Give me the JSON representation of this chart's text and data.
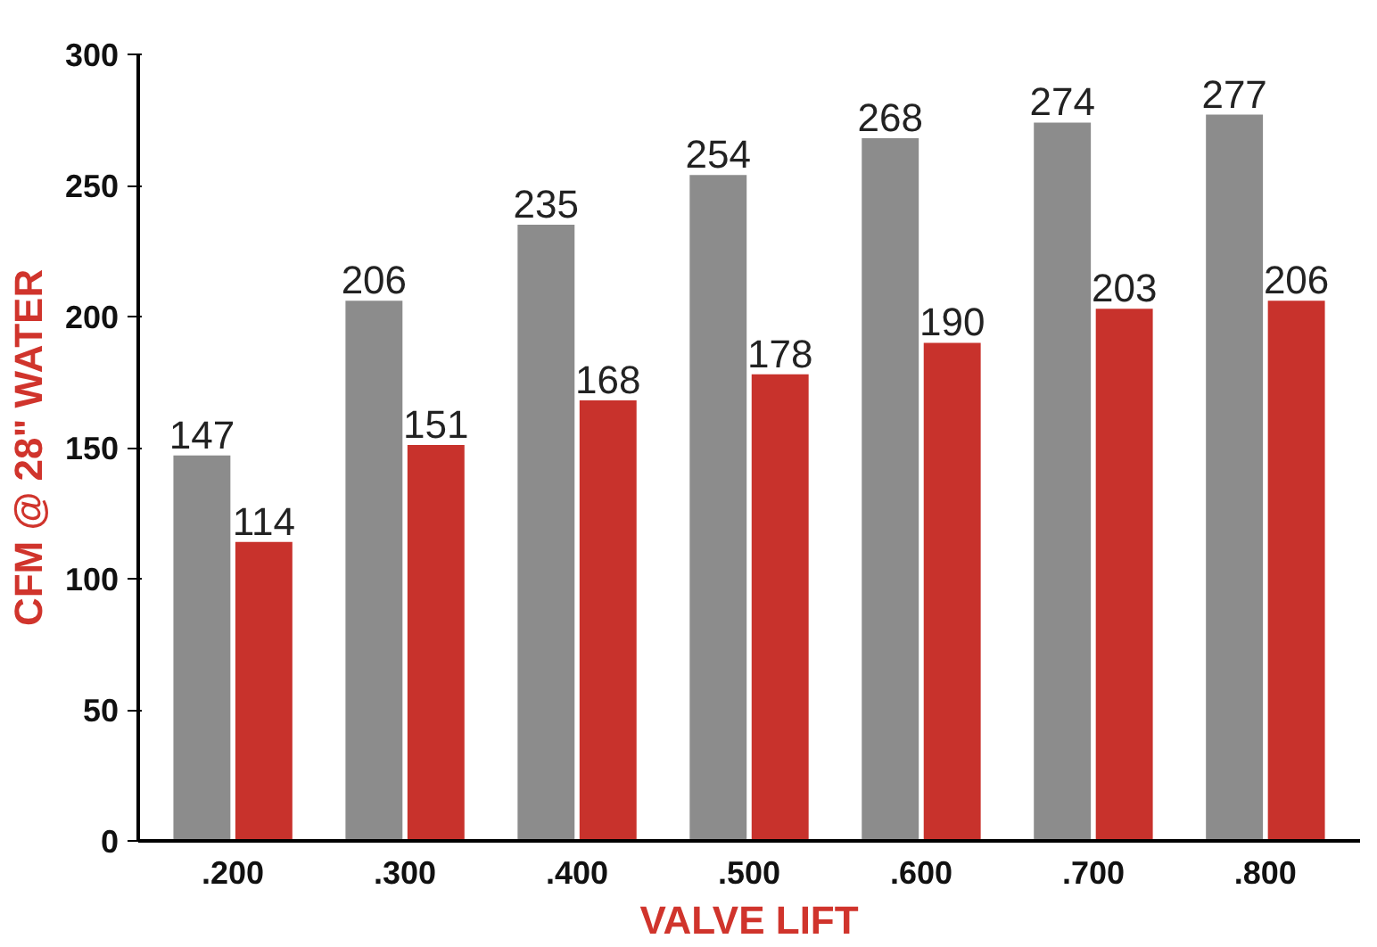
{
  "chart_data": {
    "type": "bar",
    "xlabel": "VALVE LIFT",
    "ylabel": "CFM @ 28\" WATER",
    "categories": [
      ".200",
      ".300",
      ".400",
      ".500",
      ".600",
      ".700",
      ".800"
    ],
    "series": [
      {
        "color": "#8c8c8c",
        "values": [
          147,
          206,
          235,
          254,
          268,
          274,
          277
        ]
      },
      {
        "color": "#c8322c",
        "values": [
          114,
          151,
          168,
          178,
          190,
          203,
          206
        ]
      }
    ],
    "ylim": [
      0,
      300
    ],
    "yticks": [
      0,
      50,
      100,
      150,
      200,
      250,
      300
    ],
    "grid": false,
    "data_labels": true
  }
}
